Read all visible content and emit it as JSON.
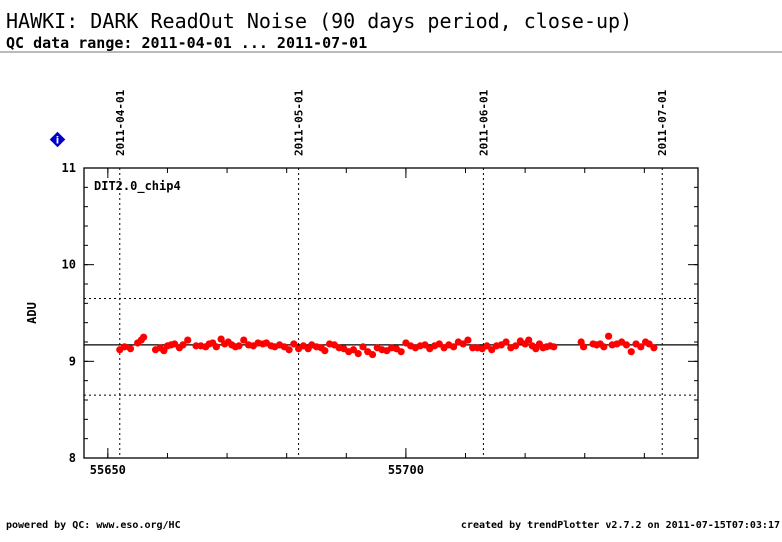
{
  "header": {
    "title": "HAWKI: DARK ReadOut Noise (90 days period, close-up)",
    "subtitle": "QC data range: 2011-04-01 ... 2011-07-01"
  },
  "footer": {
    "left": "powered by QC: www.eso.org/HC",
    "right": "created by trendPlotter v2.7.2 on 2011-07-15T07:03:17"
  },
  "info_badge": {
    "icon": "info-diamond-icon",
    "text": "i",
    "color": "#0000cc"
  },
  "chart_data": {
    "type": "scatter",
    "panel_label": "DIT2.0_chip4",
    "xlabel": "",
    "ylabel": "ADU",
    "xlim": [
      55646,
      55749
    ],
    "ylim": [
      8,
      11
    ],
    "x_ticks": [
      55650,
      55700
    ],
    "y_ticks": [
      8,
      9,
      10,
      11
    ],
    "grid": false,
    "mean_line": 9.17,
    "limit_lines": [
      9.65,
      8.65
    ],
    "date_markers": [
      {
        "label": "2011-04-01",
        "x": 55652
      },
      {
        "label": "2011-05-01",
        "x": 55682
      },
      {
        "label": "2011-06-01",
        "x": 55713
      },
      {
        "label": "2011-07-01",
        "x": 55743
      }
    ],
    "marker_color": "#ff0000",
    "line_color": "#000000",
    "series": [
      {
        "x": [
          55652.0,
          55652.8,
          55653.8,
          55655.0,
          55655.6,
          55656.0,
          55658.0,
          55658.8,
          55659.4,
          55660.0,
          55660.6,
          55661.2,
          55662.0,
          55662.6,
          55663.4,
          55664.8,
          55665.6,
          55666.4,
          55667.0,
          55667.6,
          55668.2,
          55669.0,
          55669.6,
          55670.2,
          55670.8,
          55671.4,
          55672.0,
          55672.8,
          55673.6,
          55674.4,
          55675.2,
          55676.0,
          55676.6,
          55677.4,
          55678.0,
          55678.8,
          55679.6,
          55680.4,
          55681.2,
          55682.0,
          55682.8,
          55683.6,
          55684.2,
          55685.0,
          55685.8,
          55686.4,
          55687.2,
          55688.0,
          55688.8,
          55689.6,
          55690.4,
          55691.2,
          55692.0,
          55692.8,
          55693.6,
          55694.4,
          55695.2,
          55696.0,
          55696.8,
          55697.6,
          55698.4,
          55699.2,
          55700.0,
          55700.8,
          55701.6,
          55702.4,
          55703.2,
          55704.0,
          55704.8,
          55705.6,
          55706.4,
          55707.2,
          55708.0,
          55708.8,
          55709.6,
          55710.4,
          55711.2,
          55712.0,
          55712.8,
          55713.6,
          55714.4,
          55715.2,
          55716.0,
          55716.8,
          55717.6,
          55718.4,
          55719.2,
          55720.0,
          55720.6,
          55721.2,
          55721.8,
          55722.4,
          55723.0,
          55723.6,
          55724.2,
          55724.8,
          55729.4,
          55729.8,
          55731.4,
          55732.0,
          55732.6,
          55733.2,
          55734.0,
          55734.6,
          55735.4,
          55736.2,
          55737.0,
          55737.8,
          55738.6,
          55739.4,
          55740.2,
          55740.8,
          55741.6
        ],
        "y": [
          9.12,
          9.15,
          9.13,
          9.19,
          9.22,
          9.25,
          9.12,
          9.14,
          9.11,
          9.16,
          9.17,
          9.18,
          9.14,
          9.17,
          9.22,
          9.16,
          9.16,
          9.15,
          9.18,
          9.19,
          9.15,
          9.23,
          9.18,
          9.2,
          9.17,
          9.15,
          9.16,
          9.22,
          9.17,
          9.16,
          9.19,
          9.18,
          9.19,
          9.16,
          9.15,
          9.17,
          9.15,
          9.12,
          9.18,
          9.13,
          9.16,
          9.13,
          9.17,
          9.15,
          9.14,
          9.11,
          9.18,
          9.17,
          9.14,
          9.13,
          9.1,
          9.12,
          9.08,
          9.15,
          9.1,
          9.07,
          9.14,
          9.12,
          9.11,
          9.14,
          9.13,
          9.1,
          9.19,
          9.16,
          9.14,
          9.16,
          9.17,
          9.13,
          9.16,
          9.18,
          9.14,
          9.17,
          9.15,
          9.2,
          9.18,
          9.22,
          9.14,
          9.14,
          9.13,
          9.16,
          9.12,
          9.16,
          9.17,
          9.2,
          9.14,
          9.16,
          9.21,
          9.18,
          9.22,
          9.16,
          9.13,
          9.18,
          9.14,
          9.15,
          9.16,
          9.15,
          9.2,
          9.15,
          9.18,
          9.17,
          9.18,
          9.15,
          9.26,
          9.17,
          9.18,
          9.2,
          9.17,
          9.1,
          9.18,
          9.15,
          9.2,
          9.18,
          9.14
        ]
      }
    ]
  }
}
